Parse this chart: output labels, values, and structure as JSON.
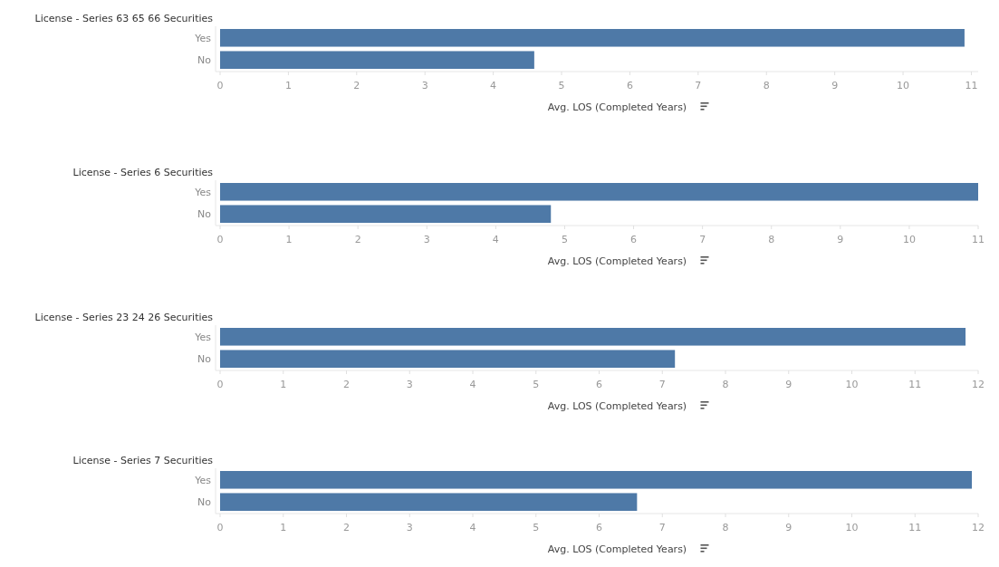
{
  "chart_data": [
    {
      "type": "bar",
      "orientation": "horizontal",
      "title": "License - Series 63 65 66 Securities",
      "categories": [
        "Yes",
        "No"
      ],
      "values": [
        10.9,
        4.6
      ],
      "color": "#4e79a7",
      "xlim": [
        0,
        11.1
      ],
      "xticks": [
        0,
        1,
        2,
        3,
        4,
        5,
        6,
        7,
        8,
        9,
        10,
        11
      ],
      "xlabel": "Avg. LOS (Completed Years)"
    },
    {
      "type": "bar",
      "orientation": "horizontal",
      "title": "License - Series 6 Securities",
      "categories": [
        "Yes",
        "No"
      ],
      "values": [
        11.0,
        4.8
      ],
      "color": "#4e79a7",
      "xlim": [
        0,
        11.0
      ],
      "xticks": [
        0,
        1,
        2,
        3,
        4,
        5,
        6,
        7,
        8,
        9,
        10,
        11
      ],
      "xlabel": "Avg. LOS (Completed Years)"
    },
    {
      "type": "bar",
      "orientation": "horizontal",
      "title": "License - Series 23 24 26 Securities",
      "categories": [
        "Yes",
        "No"
      ],
      "values": [
        11.8,
        7.2
      ],
      "color": "#4e79a7",
      "xlim": [
        0,
        12.0
      ],
      "xticks": [
        0,
        1,
        2,
        3,
        4,
        5,
        6,
        7,
        8,
        9,
        10,
        11,
        12
      ],
      "xlabel": "Avg. LOS (Completed Years)"
    },
    {
      "type": "bar",
      "orientation": "horizontal",
      "title": "License - Series 7 Securities",
      "categories": [
        "Yes",
        "No"
      ],
      "values": [
        11.9,
        6.6
      ],
      "color": "#4e79a7",
      "xlim": [
        0,
        12.0
      ],
      "xticks": [
        0,
        1,
        2,
        3,
        4,
        5,
        6,
        7,
        8,
        9,
        10,
        11,
        12
      ],
      "xlabel": "Avg. LOS (Completed Years)"
    }
  ]
}
